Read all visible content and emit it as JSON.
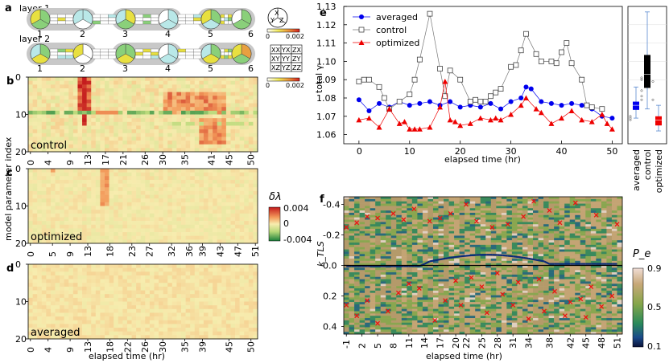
{
  "panels": {
    "a": "a",
    "b": "b",
    "c": "c",
    "d": "d",
    "e": "e",
    "f": "f"
  },
  "panel_a": {
    "layer1_label": "layer 1",
    "layer2_label": "layer 2",
    "node_numbers": [
      "1",
      "2",
      "3",
      "4",
      "5",
      "6"
    ],
    "pauli_circle_labels": [
      "X",
      "Y",
      "Z"
    ],
    "pauli_grid": [
      [
        "XX",
        "YX",
        "ZX"
      ],
      [
        "XY",
        "YY",
        "ZY"
      ],
      [
        "XZ",
        "YZ",
        "ZZ"
      ]
    ],
    "colorbar1_ticks": [
      "0",
      "0.002"
    ],
    "colorbar2_ticks": [
      "0",
      "0.002"
    ]
  },
  "heatmap_colorbar": {
    "title": "δλ",
    "ticks": [
      "0.004",
      "0",
      "-0.004"
    ],
    "colors": [
      "#c41a1c",
      "#f7ecae",
      "#1a7f3b"
    ]
  },
  "heatmaps": {
    "ylabel": "model parameter index",
    "xlabel": "elapsed time (hr)",
    "rows": 20,
    "cols": 51,
    "b": {
      "label": "control",
      "xticks": [
        "0",
        "4",
        "9",
        "13",
        "17",
        "21",
        "26",
        "30",
        "35",
        "41",
        "45",
        "50"
      ],
      "yticks": [
        "0",
        "10",
        "20"
      ]
    },
    "c": {
      "label": "optimized",
      "xticks": [
        "0",
        "5",
        "9",
        "13",
        "18",
        "23",
        "27",
        "32",
        "36",
        "39",
        "43",
        "47",
        "51"
      ],
      "yticks": [
        "0",
        "10",
        "20"
      ]
    },
    "d": {
      "label": "averaged",
      "xticks": [
        "0",
        "4",
        "9",
        "13",
        "18",
        "22",
        "26",
        "30",
        "35",
        "39",
        "45",
        "50"
      ],
      "yticks": [
        "0",
        "10",
        "20"
      ]
    }
  },
  "chart_data": [
    {
      "type": "line",
      "panel": "e",
      "xlabel": "elapsed time (hr)",
      "ylabel": "total γ",
      "xlim": [
        -3,
        52
      ],
      "ylim": [
        1.055,
        1.13
      ],
      "xticks": [
        0,
        10,
        20,
        30,
        40,
        50
      ],
      "yticks": [
        1.06,
        1.07,
        1.08,
        1.09,
        1.1,
        1.11,
        1.12,
        1.13
      ],
      "legend_position": "top-left",
      "series": [
        {
          "name": "averaged",
          "color": "#0000ee",
          "marker": "circle",
          "x": [
            0,
            2,
            4,
            6,
            8,
            10,
            12,
            14,
            16,
            18,
            20,
            22,
            24,
            26,
            28,
            30,
            32,
            33,
            34,
            36,
            38,
            40,
            42,
            44,
            46,
            48,
            50
          ],
          "y": [
            1.079,
            1.073,
            1.077,
            1.075,
            1.078,
            1.076,
            1.077,
            1.078,
            1.076,
            1.078,
            1.075,
            1.076,
            1.075,
            1.077,
            1.074,
            1.078,
            1.08,
            1.086,
            1.085,
            1.078,
            1.077,
            1.076,
            1.077,
            1.076,
            1.074,
            1.07,
            1.069
          ]
        },
        {
          "name": "control",
          "color": "#555555",
          "marker": "square",
          "x": [
            0,
            1,
            2,
            4,
            5,
            6,
            8,
            10,
            11,
            12,
            14,
            16,
            17,
            18,
            20,
            22,
            23,
            24,
            25,
            26,
            27,
            28,
            30,
            31,
            32,
            33,
            35,
            36,
            38,
            39,
            40,
            41,
            42,
            44,
            45,
            46,
            48
          ],
          "y": [
            1.089,
            1.09,
            1.09,
            1.086,
            1.08,
            1.074,
            1.078,
            1.082,
            1.09,
            1.101,
            1.126,
            1.096,
            1.081,
            1.095,
            1.09,
            1.078,
            1.079,
            1.078,
            1.078,
            1.081,
            1.083,
            1.085,
            1.097,
            1.098,
            1.106,
            1.115,
            1.104,
            1.1,
            1.1,
            1.099,
            1.105,
            1.11,
            1.099,
            1.09,
            1.076,
            1.075,
            1.074
          ]
        },
        {
          "name": "optimized",
          "color": "#ee0000",
          "marker": "triangle",
          "x": [
            0,
            2,
            4,
            6,
            8,
            9,
            10,
            11,
            12,
            14,
            16,
            17,
            18,
            19,
            20,
            22,
            24,
            26,
            27,
            28,
            30,
            32,
            33,
            35,
            36,
            38,
            40,
            42,
            44,
            46,
            48,
            49,
            50
          ],
          "y": [
            1.068,
            1.069,
            1.064,
            1.074,
            1.066,
            1.067,
            1.063,
            1.063,
            1.063,
            1.064,
            1.075,
            1.089,
            1.068,
            1.067,
            1.065,
            1.066,
            1.069,
            1.068,
            1.069,
            1.068,
            1.071,
            1.076,
            1.08,
            1.074,
            1.072,
            1.066,
            1.069,
            1.073,
            1.068,
            1.067,
            1.071,
            1.066,
            1.063
          ]
        }
      ]
    },
    {
      "type": "box",
      "panel": "e-right",
      "categories": [
        "averaged",
        "control",
        "optimized"
      ],
      "colors": [
        "#0000ee",
        "#000000",
        "#ee0000"
      ],
      "ylim": [
        1.055,
        1.13
      ],
      "boxes": [
        {
          "q1": 1.0735,
          "median": 1.076,
          "q3": 1.078,
          "whisker_low": 1.069,
          "whisker_high": 1.086,
          "outliers": [
            1.069,
            1.07,
            1.068
          ]
        },
        {
          "q1": 1.0855,
          "median": 1.093,
          "q3": 1.1035,
          "whisker_low": 1.074,
          "whisker_high": 1.127,
          "outliers": [
            1.084,
            1.081,
            1.079,
            1.091,
            1.09
          ]
        },
        {
          "q1": 1.065,
          "median": 1.068,
          "q3": 1.07,
          "whisker_low": 1.062,
          "whisker_high": 1.076,
          "outliers": [
            1.079,
            1.089
          ]
        }
      ]
    },
    {
      "type": "heatmap",
      "panel": "f",
      "xlabel": "elapsed time (hr)",
      "ylabel": "k_TLS",
      "ylim": [
        -0.45,
        0.45
      ],
      "yticks": [
        -0.4,
        -0.2,
        0.0,
        0.2,
        0.4
      ],
      "xticks": [
        "-1",
        "2",
        "5",
        "8",
        "11",
        "14",
        "17",
        "20",
        "22",
        "25",
        "28",
        "31",
        "34",
        "38",
        "42",
        "45",
        "48",
        "51"
      ],
      "colorbar_title": "P_e",
      "colorbar_ticks": [
        "0.9",
        "0.5",
        "0.1"
      ],
      "crosses_k": [
        -0.25,
        -0.28,
        -0.32,
        -0.31,
        -0.34,
        -0.3,
        -0.37,
        -0.29,
        -0.31,
        -0.34,
        -0.4,
        -0.29,
        -0.25,
        -0.27,
        -0.32,
        -0.42,
        -0.36,
        -0.28,
        -0.41,
        -0.33,
        -0.27,
        0.26,
        0.33,
        0.23,
        0.38,
        0.3,
        0.18,
        0.12,
        0.15,
        0.36,
        0.23,
        0.1,
        0.26,
        0.08,
        0.14,
        0.31,
        0.05,
        0.19,
        0.26,
        0.11,
        0.35,
        0.09,
        0.3,
        0.17,
        0.33,
        0.24,
        0.22,
        0.34,
        0.14,
        0.27,
        0.2
      ],
      "crosses_t": [
        -1,
        1,
        3,
        5,
        8,
        10,
        12,
        15,
        17,
        19,
        22,
        24,
        27,
        30,
        33,
        35,
        38,
        40,
        43,
        47,
        51,
        -1,
        1,
        3,
        5,
        7,
        9,
        11,
        13,
        16,
        18,
        20,
        21,
        23,
        25,
        26,
        28,
        29,
        31,
        32,
        34,
        36,
        37,
        39,
        41,
        42,
        44,
        45,
        46,
        48,
        50
      ]
    }
  ]
}
